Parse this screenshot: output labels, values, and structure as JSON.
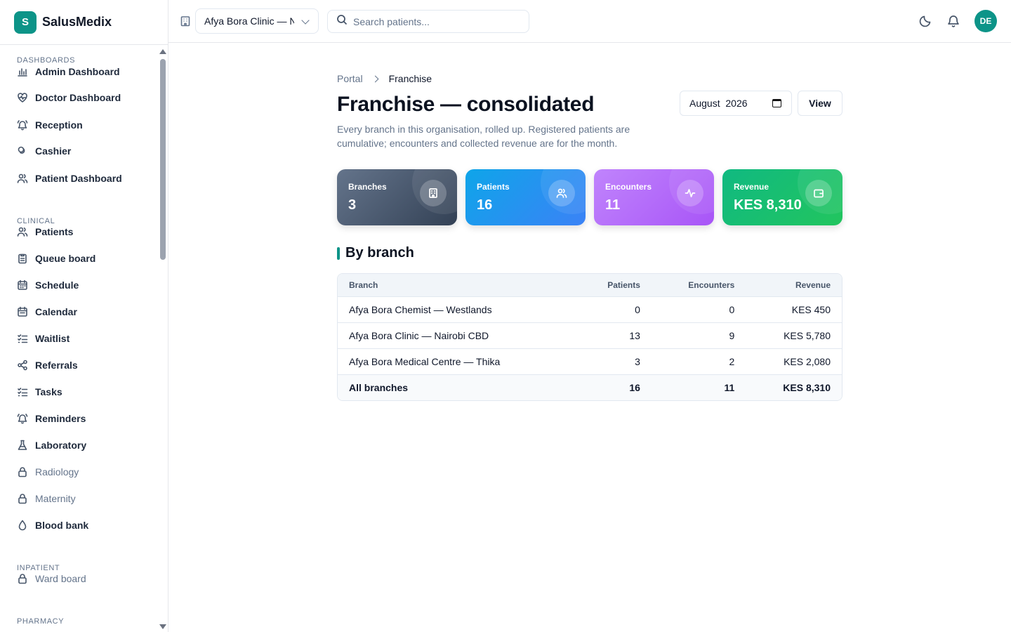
{
  "app": {
    "brand_letter": "S",
    "brand_name": "SalusMedix"
  },
  "sidebar": {
    "sections": [
      {
        "title": "DASHBOARDS",
        "items": [
          {
            "label": "Admin Dashboard",
            "icon": "bar-chart-icon"
          },
          {
            "label": "Doctor Dashboard",
            "icon": "heart-pulse-icon"
          },
          {
            "label": "Reception",
            "icon": "bell-ring-icon"
          },
          {
            "label": "Cashier",
            "icon": "coins-icon"
          },
          {
            "label": "Patient Dashboard",
            "icon": "users-icon"
          }
        ]
      },
      {
        "title": "CLINICAL",
        "items": [
          {
            "label": "Patients",
            "icon": "users-icon"
          },
          {
            "label": "Queue board",
            "icon": "clipboard-icon"
          },
          {
            "label": "Schedule",
            "icon": "calendar-icon"
          },
          {
            "label": "Calendar",
            "icon": "calendar-days-icon"
          },
          {
            "label": "Waitlist",
            "icon": "list-checks-icon"
          },
          {
            "label": "Referrals",
            "icon": "share-icon"
          },
          {
            "label": "Tasks",
            "icon": "list-checks-icon"
          },
          {
            "label": "Reminders",
            "icon": "bell-ring-icon"
          },
          {
            "label": "Laboratory",
            "icon": "flask-icon"
          },
          {
            "label": "Radiology",
            "icon": "lock-icon",
            "locked": true
          },
          {
            "label": "Maternity",
            "icon": "lock-icon",
            "locked": true
          },
          {
            "label": "Blood bank",
            "icon": "droplet-icon"
          }
        ]
      },
      {
        "title": "INPATIENT",
        "items": [
          {
            "label": "Ward board",
            "icon": "lock-icon",
            "locked": true
          }
        ]
      },
      {
        "title": "PHARMACY",
        "items": []
      }
    ]
  },
  "topbar": {
    "branch_selected": "Afya Bora Clinic — Nairobi CBD",
    "search_placeholder": "Search patients..."
  },
  "user": {
    "initials": "DE"
  },
  "breadcrumb": {
    "root": "Portal",
    "current": "Franchise"
  },
  "page": {
    "title": "Franchise — consolidated",
    "subtitle": "Every branch in this organisation, rolled up. Registered patients are cumulative; encounters and collected revenue are for the month.",
    "month_value": "August  2026",
    "view_label": "View"
  },
  "stats": {
    "branches": {
      "label": "Branches",
      "value": "3"
    },
    "patients": {
      "label": "Patients",
      "value": "16"
    },
    "encounters": {
      "label": "Encounters",
      "value": "11"
    },
    "revenue": {
      "label": "Revenue",
      "value": "KES 8,310"
    }
  },
  "by_branch": {
    "title": "By branch",
    "columns": [
      "Branch",
      "Patients",
      "Encounters",
      "Revenue"
    ],
    "rows": [
      [
        "Afya Bora Chemist — Westlands",
        "0",
        "0",
        "KES 450"
      ],
      [
        "Afya Bora Clinic — Nairobi CBD",
        "13",
        "9",
        "KES 5,780"
      ],
      [
        "Afya Bora Medical Centre — Thika",
        "3",
        "2",
        "KES 2,080"
      ]
    ],
    "total": [
      "All branches",
      "16",
      "11",
      "KES 8,310"
    ]
  },
  "colors": {
    "accent": "#0d9488",
    "card_branches": "#475569",
    "card_patients": "#0ea5e9",
    "card_encounters": "#a855f7",
    "card_revenue": "#10b981"
  }
}
